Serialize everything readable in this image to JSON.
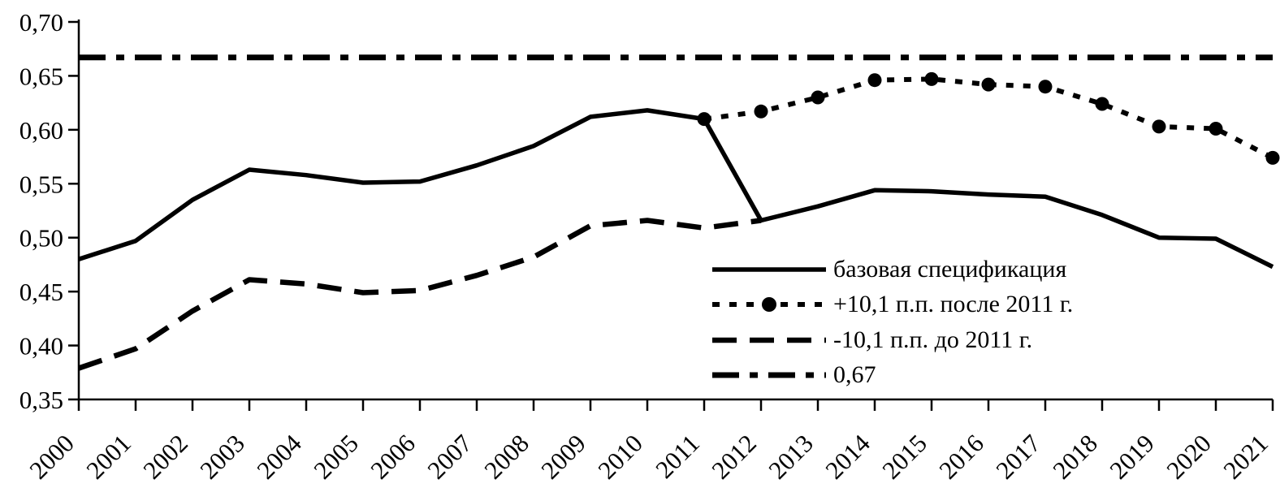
{
  "figure": {
    "background_color": "#ffffff",
    "line_color": "#000000"
  },
  "chart_data": {
    "type": "line",
    "title": "",
    "xlabel": "",
    "ylabel": "",
    "grid": "off",
    "legend_position": "inside-lower-right",
    "ylim": [
      0.35,
      0.7
    ],
    "y_tick_labels": [
      "0,70",
      "0,65",
      "0,60",
      "0,55",
      "0,50",
      "0,45",
      "0,40",
      "0,35"
    ],
    "y_tick_values": [
      0.7,
      0.65,
      0.6,
      0.55,
      0.5,
      0.45,
      0.4,
      0.35
    ],
    "categories": [
      "2000",
      "2001",
      "2002",
      "2003",
      "2004",
      "2005",
      "2006",
      "2007",
      "2008",
      "2009",
      "2010",
      "2011",
      "2012",
      "2013",
      "2014",
      "2015",
      "2016",
      "2017",
      "2018",
      "2019",
      "2020",
      "2021"
    ],
    "series": [
      {
        "id": "base-specification",
        "name": "базовая спецификация",
        "line_style": "solid",
        "marker": "none",
        "values": [
          0.48,
          0.497,
          0.535,
          0.563,
          0.558,
          0.551,
          0.552,
          0.567,
          0.585,
          0.612,
          0.618,
          0.61,
          0.516,
          0.529,
          0.544,
          0.543,
          0.54,
          0.538,
          0.521,
          0.5,
          0.499,
          0.473
        ]
      },
      {
        "id": "plus-10-1-pp-after-2011",
        "name": "+10,1 п.п. после 2011 г.",
        "line_style": "dotted-circle-markers",
        "marker": "circle",
        "values": [
          null,
          null,
          null,
          null,
          null,
          null,
          null,
          null,
          null,
          null,
          null,
          0.61,
          0.617,
          0.63,
          0.646,
          0.647,
          0.642,
          0.64,
          0.624,
          0.603,
          0.601,
          0.574
        ]
      },
      {
        "id": "minus-10-1-pp-before-2011",
        "name": "-10,1 п.п. до 2011 г.",
        "line_style": "long-dash",
        "marker": "none",
        "values": [
          0.379,
          0.397,
          0.432,
          0.461,
          0.457,
          0.449,
          0.451,
          0.465,
          0.482,
          0.511,
          0.516,
          0.509,
          0.516,
          null,
          null,
          null,
          null,
          null,
          null,
          null,
          null,
          null
        ]
      },
      {
        "id": "constant-0-67",
        "name": "0,67",
        "line_style": "dash-dot",
        "marker": "none",
        "values": [
          0.667,
          0.667,
          0.667,
          0.667,
          0.667,
          0.667,
          0.667,
          0.667,
          0.667,
          0.667,
          0.667,
          0.667,
          0.667,
          0.667,
          0.667,
          0.667,
          0.667,
          0.667,
          0.667,
          0.667,
          0.667,
          0.667
        ]
      }
    ]
  },
  "legend": {
    "items": [
      {
        "label": "базовая спецификация",
        "style": "solid"
      },
      {
        "label": "+10,1 п.п. после 2011 г.",
        "style": "dotted-circle-markers"
      },
      {
        "label": "-10,1 п.п. до 2011 г.",
        "style": "long-dash"
      },
      {
        "label": "0,67",
        "style": "dash-dot"
      }
    ]
  }
}
